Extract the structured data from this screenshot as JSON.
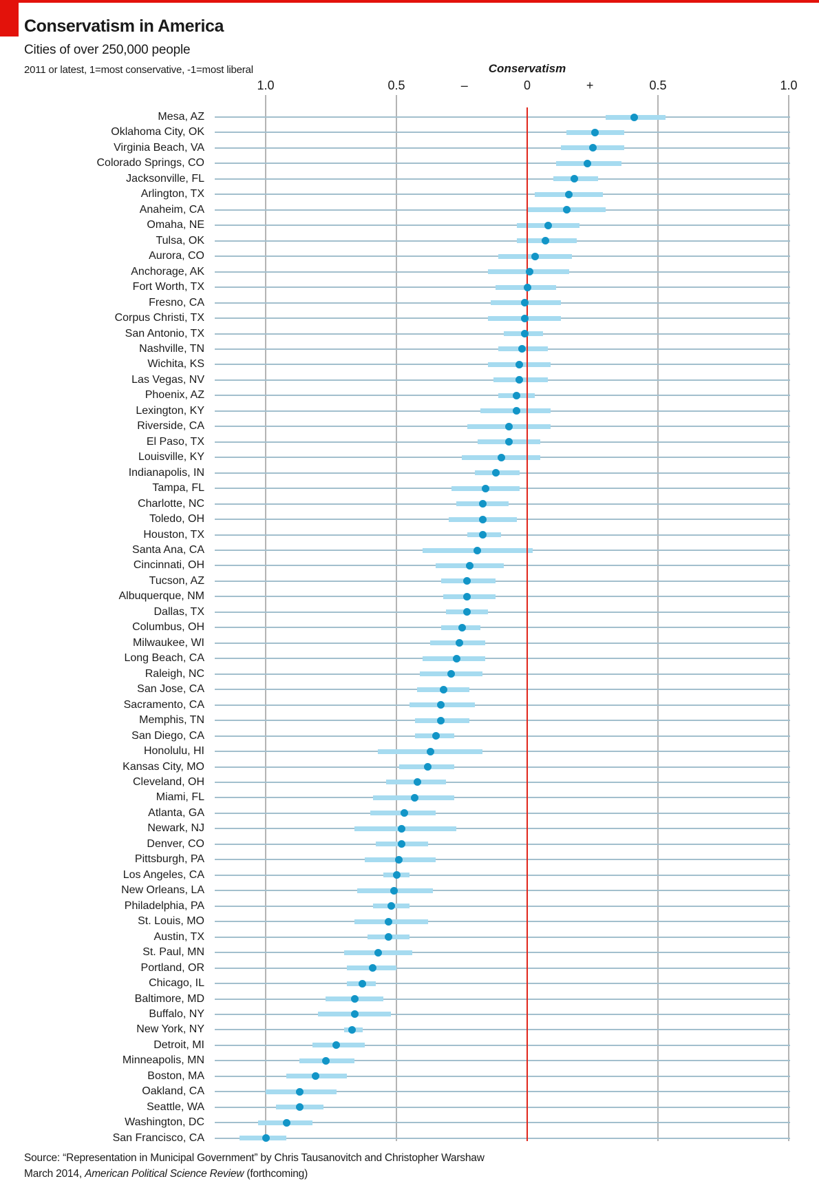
{
  "header": {
    "title": "Conservatism in America",
    "subtitle": "Cities of over 250,000 people",
    "note": "2011 or latest, 1=most conservative, -1=most liberal"
  },
  "chart_data": {
    "type": "scatter",
    "subtype": "dot-with-confidence-interval",
    "axis_title": "Conservatism",
    "xlim": [
      -1.0,
      1.0
    ],
    "axis_ticks": [
      {
        "label": "1.0",
        "value": -1.0,
        "tick": true,
        "red": false
      },
      {
        "label": "0.5",
        "value": -0.5,
        "tick": true,
        "red": false
      },
      {
        "label": "–",
        "value": -0.24,
        "tick": false,
        "red": false
      },
      {
        "label": "0",
        "value": 0.0,
        "tick": true,
        "red": true
      },
      {
        "label": "+",
        "value": 0.24,
        "tick": false,
        "red": false
      },
      {
        "label": "0.5",
        "value": 0.5,
        "tick": true,
        "red": false
      },
      {
        "label": "1.0",
        "value": 1.0,
        "tick": true,
        "red": false
      }
    ],
    "legend_position": "none",
    "grid": true,
    "cities": [
      {
        "label": "Mesa, AZ",
        "value": 0.41,
        "lo": 0.3,
        "hi": 0.53
      },
      {
        "label": "Oklahoma City, OK",
        "value": 0.26,
        "lo": 0.15,
        "hi": 0.37
      },
      {
        "label": "Virginia Beach, VA",
        "value": 0.25,
        "lo": 0.13,
        "hi": 0.37
      },
      {
        "label": "Colorado Springs, CO",
        "value": 0.23,
        "lo": 0.11,
        "hi": 0.36
      },
      {
        "label": "Jacksonville, FL",
        "value": 0.18,
        "lo": 0.1,
        "hi": 0.27
      },
      {
        "label": "Arlington, TX",
        "value": 0.16,
        "lo": 0.03,
        "hi": 0.29
      },
      {
        "label": "Anaheim, CA",
        "value": 0.15,
        "lo": 0.0,
        "hi": 0.3
      },
      {
        "label": "Omaha, NE",
        "value": 0.08,
        "lo": -0.04,
        "hi": 0.2
      },
      {
        "label": "Tulsa, OK",
        "value": 0.07,
        "lo": -0.04,
        "hi": 0.19
      },
      {
        "label": "Aurora, CO",
        "value": 0.03,
        "lo": -0.11,
        "hi": 0.17
      },
      {
        "label": "Anchorage, AK",
        "value": 0.01,
        "lo": -0.15,
        "hi": 0.16
      },
      {
        "label": "Fort Worth, TX",
        "value": 0.0,
        "lo": -0.12,
        "hi": 0.11
      },
      {
        "label": "Fresno, CA",
        "value": -0.01,
        "lo": -0.14,
        "hi": 0.13
      },
      {
        "label": "Corpus Christi, TX",
        "value": -0.01,
        "lo": -0.15,
        "hi": 0.13
      },
      {
        "label": "San Antonio, TX",
        "value": -0.01,
        "lo": -0.09,
        "hi": 0.06
      },
      {
        "label": "Nashville, TN",
        "value": -0.02,
        "lo": -0.11,
        "hi": 0.08
      },
      {
        "label": "Wichita, KS",
        "value": -0.03,
        "lo": -0.15,
        "hi": 0.09
      },
      {
        "label": "Las Vegas, NV",
        "value": -0.03,
        "lo": -0.13,
        "hi": 0.08
      },
      {
        "label": "Phoenix, AZ",
        "value": -0.04,
        "lo": -0.11,
        "hi": 0.03
      },
      {
        "label": "Lexington, KY",
        "value": -0.04,
        "lo": -0.18,
        "hi": 0.09
      },
      {
        "label": "Riverside, CA",
        "value": -0.07,
        "lo": -0.23,
        "hi": 0.09
      },
      {
        "label": "El Paso, TX",
        "value": -0.07,
        "lo": -0.19,
        "hi": 0.05
      },
      {
        "label": "Louisville, KY",
        "value": -0.1,
        "lo": -0.25,
        "hi": 0.05
      },
      {
        "label": "Indianapolis, IN",
        "value": -0.12,
        "lo": -0.2,
        "hi": -0.03
      },
      {
        "label": "Tampa, FL",
        "value": -0.16,
        "lo": -0.29,
        "hi": -0.03
      },
      {
        "label": "Charlotte, NC",
        "value": -0.17,
        "lo": -0.27,
        "hi": -0.07
      },
      {
        "label": "Toledo, OH",
        "value": -0.17,
        "lo": -0.3,
        "hi": -0.04
      },
      {
        "label": "Houston, TX",
        "value": -0.17,
        "lo": -0.23,
        "hi": -0.1
      },
      {
        "label": "Santa Ana, CA",
        "value": -0.19,
        "lo": -0.4,
        "hi": 0.02
      },
      {
        "label": "Cincinnati, OH",
        "value": -0.22,
        "lo": -0.35,
        "hi": -0.09
      },
      {
        "label": "Tucson, AZ",
        "value": -0.23,
        "lo": -0.33,
        "hi": -0.12
      },
      {
        "label": "Albuquerque, NM",
        "value": -0.23,
        "lo": -0.32,
        "hi": -0.12
      },
      {
        "label": "Dallas, TX",
        "value": -0.23,
        "lo": -0.31,
        "hi": -0.15
      },
      {
        "label": "Columbus, OH",
        "value": -0.25,
        "lo": -0.33,
        "hi": -0.18
      },
      {
        "label": "Milwaukee, WI",
        "value": -0.26,
        "lo": -0.37,
        "hi": -0.16
      },
      {
        "label": "Long Beach, CA",
        "value": -0.27,
        "lo": -0.4,
        "hi": -0.16
      },
      {
        "label": "Raleigh, NC",
        "value": -0.29,
        "lo": -0.41,
        "hi": -0.17
      },
      {
        "label": "San Jose, CA",
        "value": -0.32,
        "lo": -0.42,
        "hi": -0.22
      },
      {
        "label": "Sacramento, CA",
        "value": -0.33,
        "lo": -0.45,
        "hi": -0.2
      },
      {
        "label": "Memphis, TN",
        "value": -0.33,
        "lo": -0.43,
        "hi": -0.22
      },
      {
        "label": "San Diego, CA",
        "value": -0.35,
        "lo": -0.43,
        "hi": -0.28
      },
      {
        "label": "Honolulu, HI",
        "value": -0.37,
        "lo": -0.57,
        "hi": -0.17
      },
      {
        "label": "Kansas City, MO",
        "value": -0.38,
        "lo": -0.49,
        "hi": -0.28
      },
      {
        "label": "Cleveland, OH",
        "value": -0.42,
        "lo": -0.54,
        "hi": -0.31
      },
      {
        "label": "Miami, FL",
        "value": -0.43,
        "lo": -0.59,
        "hi": -0.28
      },
      {
        "label": "Atlanta, GA",
        "value": -0.47,
        "lo": -0.6,
        "hi": -0.35
      },
      {
        "label": "Newark, NJ",
        "value": -0.48,
        "lo": -0.66,
        "hi": -0.27
      },
      {
        "label": "Denver, CO",
        "value": -0.48,
        "lo": -0.58,
        "hi": -0.38
      },
      {
        "label": "Pittsburgh, PA",
        "value": -0.49,
        "lo": -0.62,
        "hi": -0.35
      },
      {
        "label": "Los Angeles, CA",
        "value": -0.5,
        "lo": -0.55,
        "hi": -0.45
      },
      {
        "label": "New Orleans, LA",
        "value": -0.51,
        "lo": -0.65,
        "hi": -0.36
      },
      {
        "label": "Philadelphia, PA",
        "value": -0.52,
        "lo": -0.59,
        "hi": -0.45
      },
      {
        "label": "St. Louis, MO",
        "value": -0.53,
        "lo": -0.66,
        "hi": -0.38
      },
      {
        "label": "Austin, TX",
        "value": -0.53,
        "lo": -0.61,
        "hi": -0.45
      },
      {
        "label": "St. Paul, MN",
        "value": -0.57,
        "lo": -0.7,
        "hi": -0.44
      },
      {
        "label": "Portland, OR",
        "value": -0.59,
        "lo": -0.69,
        "hi": -0.5
      },
      {
        "label": "Chicago, IL",
        "value": -0.63,
        "lo": -0.69,
        "hi": -0.58
      },
      {
        "label": "Baltimore, MD",
        "value": -0.66,
        "lo": -0.77,
        "hi": -0.55
      },
      {
        "label": "Buffalo, NY",
        "value": -0.66,
        "lo": -0.8,
        "hi": -0.52
      },
      {
        "label": "New York, NY",
        "value": -0.67,
        "lo": -0.7,
        "hi": -0.63
      },
      {
        "label": "Detroit, MI",
        "value": -0.73,
        "lo": -0.82,
        "hi": -0.62
      },
      {
        "label": "Minneapolis, MN",
        "value": -0.77,
        "lo": -0.87,
        "hi": -0.66
      },
      {
        "label": "Boston, MA",
        "value": -0.81,
        "lo": -0.92,
        "hi": -0.69
      },
      {
        "label": "Oakland, CA",
        "value": -0.87,
        "lo": -1.0,
        "hi": -0.73
      },
      {
        "label": "Seattle, WA",
        "value": -0.87,
        "lo": -0.96,
        "hi": -0.78
      },
      {
        "label": "Washington, DC",
        "value": -0.92,
        "lo": -1.03,
        "hi": -0.82
      },
      {
        "label": "San Francisco, CA",
        "value": -1.0,
        "lo": -1.1,
        "hi": -0.92
      }
    ]
  },
  "source": {
    "line1": "Source: “Representation in Municipal Government” by Chris Tausanovitch and Christopher Warshaw",
    "line2_prefix": "March 2014, ",
    "line2_italic": "American Political Science Review",
    "line2_suffix": " (forthcoming)"
  },
  "colors": {
    "red": "#e3120b",
    "zero_line": "#e1251b",
    "bar": "#a6dbf0",
    "dot": "#1295c7",
    "row_line": "#a2bfcd",
    "grid": "#b4b4b4",
    "text": "#1a1a1a"
  }
}
